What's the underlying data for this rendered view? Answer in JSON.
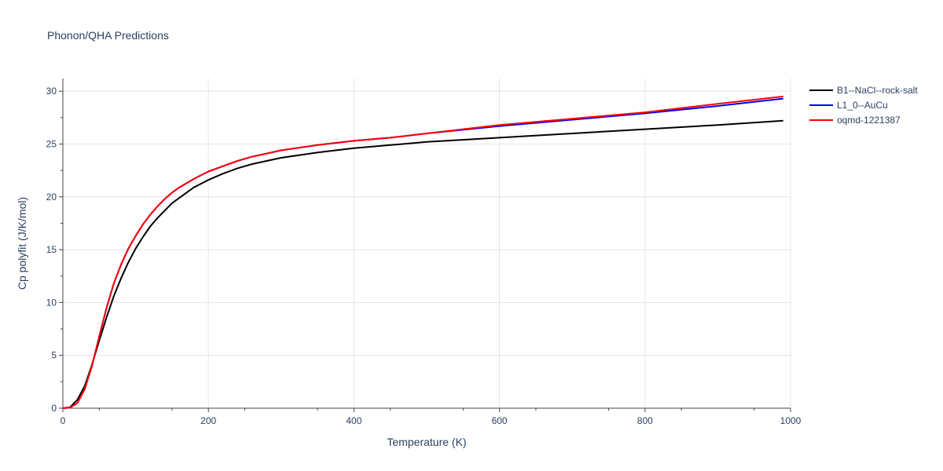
{
  "chart_data": {
    "type": "line",
    "title": "Phonon/QHA Predictions",
    "xlabel": "Temperature (K)",
    "ylabel": "Cp polyfit (J/K/mol)",
    "xlim": [
      0,
      1000
    ],
    "ylim": [
      0,
      31.2
    ],
    "xticks": [
      0,
      200,
      400,
      600,
      800,
      1000
    ],
    "yticks": [
      0,
      5,
      10,
      15,
      20,
      25,
      30
    ],
    "grid": true,
    "legend_position": "top-right",
    "x": [
      0,
      10,
      20,
      30,
      40,
      50,
      60,
      70,
      80,
      90,
      100,
      110,
      120,
      130,
      140,
      150,
      160,
      180,
      200,
      220,
      240,
      260,
      280,
      300,
      350,
      400,
      450,
      500,
      600,
      700,
      800,
      900,
      990
    ],
    "series": [
      {
        "name": "B1--NaCl--rock-salt",
        "color": "#000000",
        "values": [
          0,
          0.1,
          0.8,
          2.1,
          4.1,
          6.4,
          8.6,
          10.6,
          12.3,
          13.8,
          15.1,
          16.2,
          17.2,
          18.0,
          18.7,
          19.4,
          19.9,
          20.9,
          21.6,
          22.2,
          22.7,
          23.1,
          23.4,
          23.7,
          24.2,
          24.6,
          24.9,
          25.2,
          25.6,
          26.0,
          26.4,
          26.8,
          27.2
        ]
      },
      {
        "name": "L1_0--AuCu",
        "color": "#0000ff",
        "values": [
          0,
          0.05,
          0.5,
          1.8,
          4.0,
          6.8,
          9.5,
          11.8,
          13.6,
          15.1,
          16.3,
          17.4,
          18.3,
          19.1,
          19.8,
          20.4,
          20.9,
          21.7,
          22.4,
          22.9,
          23.4,
          23.8,
          24.1,
          24.4,
          24.9,
          25.3,
          25.6,
          26.0,
          26.7,
          27.3,
          27.9,
          28.6,
          29.3
        ]
      },
      {
        "name": "oqmd-1221387",
        "color": "#ff0000",
        "values": [
          0,
          0.05,
          0.5,
          1.8,
          4.0,
          6.8,
          9.5,
          11.8,
          13.6,
          15.1,
          16.3,
          17.4,
          18.3,
          19.1,
          19.8,
          20.4,
          20.9,
          21.7,
          22.4,
          22.9,
          23.4,
          23.8,
          24.1,
          24.4,
          24.9,
          25.3,
          25.6,
          26.0,
          26.8,
          27.4,
          28.0,
          28.8,
          29.5
        ]
      }
    ]
  }
}
